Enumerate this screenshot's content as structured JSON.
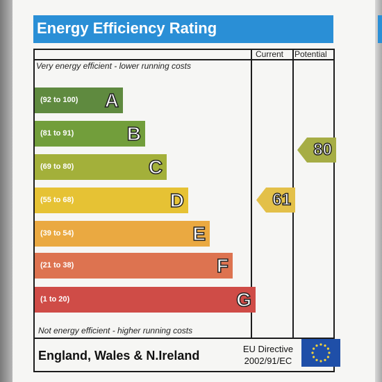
{
  "title": "Energy Efficiency Rating",
  "columns": {
    "current": "Current",
    "potential": "Potential"
  },
  "notes": {
    "top": "Very energy efficient - lower running costs",
    "bottom": "Not energy efficient - higher running costs"
  },
  "bands": [
    {
      "letter": "A",
      "range": "(92 to 100)",
      "color": "#5f8a3f"
    },
    {
      "letter": "B",
      "range": "(81 to 91)",
      "color": "#729e3b"
    },
    {
      "letter": "C",
      "range": "(69 to 80)",
      "color": "#a3b03a"
    },
    {
      "letter": "D",
      "range": "(55 to 68)",
      "color": "#e6c234"
    },
    {
      "letter": "E",
      "range": "(39 to 54)",
      "color": "#eaa941"
    },
    {
      "letter": "F",
      "range": "(21 to 38)",
      "color": "#dd7350"
    },
    {
      "letter": "G",
      "range": "(1 to 20)",
      "color": "#cf4c47"
    }
  ],
  "ratings": {
    "current": {
      "value": "61",
      "band": "D",
      "color": "#e3c049"
    },
    "potential": {
      "value": "80",
      "band": "C",
      "color": "#a6ad45"
    }
  },
  "footer": {
    "region": "England, Wales & N.Ireland",
    "directive_line1": "EU Directive",
    "directive_line2": "2002/91/EC"
  },
  "colors": {
    "title_bar": "#2a8fd6",
    "eu_flag": "#1f4fa8",
    "eu_stars": "#f2d23a"
  }
}
